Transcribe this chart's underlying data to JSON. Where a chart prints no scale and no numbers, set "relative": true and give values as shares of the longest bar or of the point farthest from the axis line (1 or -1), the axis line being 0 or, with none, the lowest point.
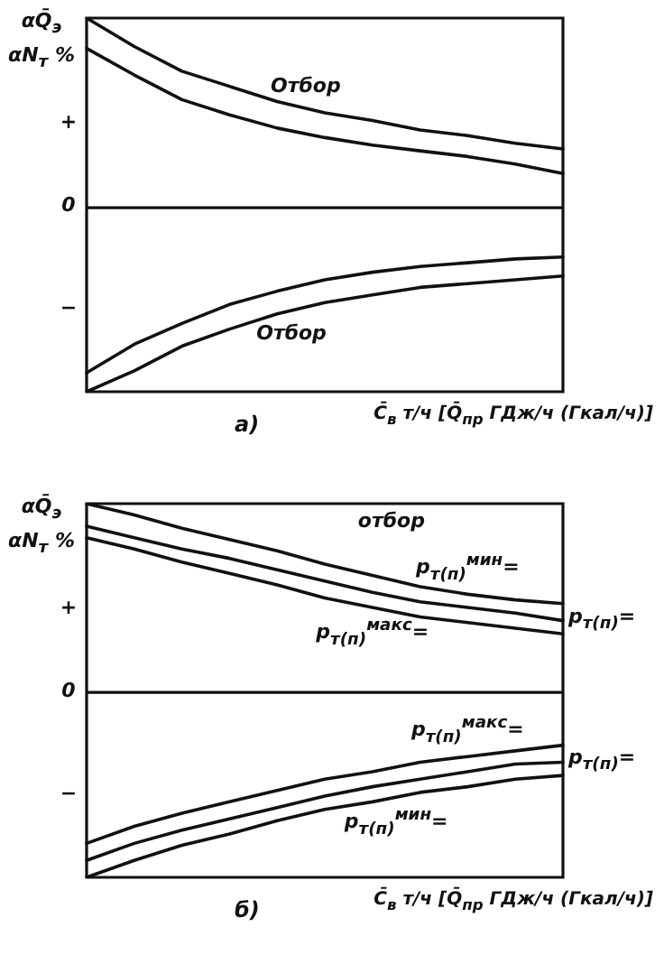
{
  "chart_data": [
    {
      "type": "line",
      "title": "а)",
      "xlabel": "C̄$_{в}$ т/ч [Q̄$_{пр}$ ГДж/ч (Гкал/ч)]",
      "ylabel": "αQ̄$_{э}$ αN$_{т}$ %",
      "relative": true,
      "categories": [
        null,
        null,
        null,
        null,
        null,
        null,
        null,
        null,
        null,
        null,
        null
      ],
      "legend": false,
      "marker": "none",
      "line_style": "solid",
      "series": [
        {
          "name": "Отбор",
          "color": "#111111",
          "values": [
            1.0,
            0.85,
            0.72,
            0.64,
            0.56,
            0.5,
            0.46,
            0.41,
            0.38,
            0.34,
            0.31
          ]
        },
        {
          "color": "#111111",
          "values": [
            0.84,
            0.7,
            0.57,
            0.49,
            0.42,
            0.37,
            0.33,
            0.3,
            0.27,
            0.23,
            0.18
          ]
        },
        {
          "color": "#111111",
          "values": [
            -0.87,
            -0.72,
            -0.61,
            -0.51,
            -0.44,
            -0.38,
            -0.34,
            -0.31,
            -0.29,
            -0.27,
            -0.26
          ]
        },
        {
          "name": "Отбор",
          "color": "#111111",
          "values": [
            -0.97,
            -0.86,
            -0.73,
            -0.64,
            -0.56,
            -0.5,
            -0.46,
            -0.42,
            -0.4,
            -0.38,
            -0.36
          ]
        }
      ],
      "annotations": [
        "+",
        "0",
        "−"
      ]
    },
    {
      "type": "line",
      "title": "б)",
      "xlabel": "C̄$_{в}$ т/ч [Q̄$_{пр}$ ГДж/ч (Гкал/ч)]",
      "ylabel": "αQ̄$_{э}$ αN$_{т}$ %",
      "relative": true,
      "categories": [
        null,
        null,
        null,
        null,
        null,
        null,
        null,
        null,
        null,
        null,
        null
      ],
      "legend": false,
      "marker": "none",
      "line_style": "solid",
      "series": [
        {
          "name": "p$_{т(п)}$$^{мин}$=",
          "color": "#111111",
          "values": [
            1.0,
            0.94,
            0.87,
            0.81,
            0.75,
            0.68,
            0.62,
            0.56,
            0.52,
            0.49,
            0.47
          ]
        },
        {
          "name": "p$_{т(п)}$=",
          "color": "#111111",
          "values": [
            0.88,
            0.82,
            0.76,
            0.71,
            0.65,
            0.59,
            0.53,
            0.48,
            0.45,
            0.42,
            0.38
          ]
        },
        {
          "name": "p$_{т(п)}$$^{макс}$=",
          "color": "#111111",
          "values": [
            0.82,
            0.76,
            0.69,
            0.63,
            0.57,
            0.5,
            0.45,
            0.4,
            0.37,
            0.34,
            0.31
          ]
        },
        {
          "name": "p$_{т(п)}$$^{макс}$=",
          "color": "#111111",
          "values": [
            -0.8,
            -0.71,
            -0.64,
            -0.58,
            -0.52,
            -0.46,
            -0.42,
            -0.37,
            -0.34,
            -0.31,
            -0.28
          ]
        },
        {
          "name": "p$_{т(п)}$=",
          "color": "#111111",
          "values": [
            -0.89,
            -0.8,
            -0.73,
            -0.67,
            -0.61,
            -0.55,
            -0.5,
            -0.46,
            -0.42,
            -0.38,
            -0.37
          ]
        },
        {
          "name": "p$_{т(п)}$$^{мин}$=",
          "color": "#111111",
          "values": [
            -0.98,
            -0.89,
            -0.81,
            -0.75,
            -0.68,
            -0.62,
            -0.58,
            -0.53,
            -0.5,
            -0.46,
            -0.44
          ]
        }
      ],
      "annotations": [
        "отбор",
        "+",
        "0",
        "−"
      ]
    }
  ]
}
